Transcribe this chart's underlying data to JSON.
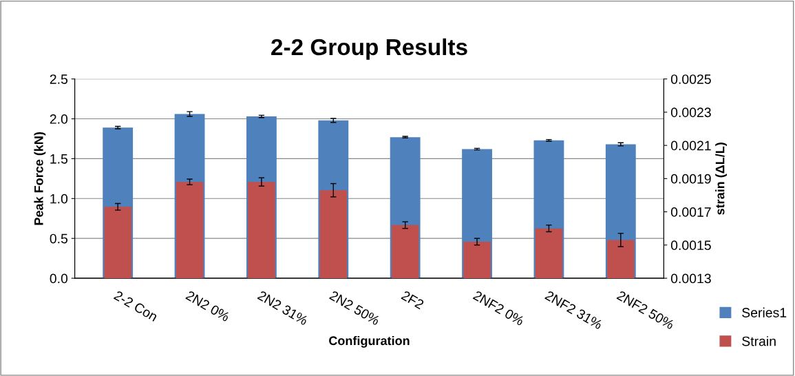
{
  "chart_data": {
    "type": "bar",
    "title": "2-2 Group Results",
    "xlabel": "Configuration",
    "ylabel": "Peak Force (kN)",
    "y2label": "strain (ΔL/L)",
    "categories": [
      "2-2 Con",
      "2N2 0%",
      "2N2 31%",
      "2N2 50%",
      "2F2",
      "2NF2 0%",
      "2NF2 31%",
      "2NF2 50%"
    ],
    "series": [
      {
        "name": "Series1",
        "color": "#4f81bd",
        "values": [
          1.89,
          2.06,
          2.03,
          1.98,
          1.77,
          1.62,
          1.73,
          1.68
        ],
        "errors": [
          0.015,
          0.03,
          0.015,
          0.025,
          0.01,
          0.01,
          0.01,
          0.02
        ]
      },
      {
        "name": "Strain",
        "color": "#c0504d",
        "axis": "y2",
        "values": [
          0.00173,
          0.00188,
          0.00188,
          0.00183,
          0.00162,
          0.00152,
          0.0016,
          0.00153
        ],
        "errors": [
          2e-05,
          1.7e-05,
          2.5e-05,
          4e-05,
          2e-05,
          2e-05,
          2e-05,
          4e-05
        ]
      }
    ],
    "ylim": [
      0,
      2.5
    ],
    "yticks": [
      {
        "value": 0,
        "label": "0.0"
      },
      {
        "value": 0.5,
        "label": "0.5"
      },
      {
        "value": 1,
        "label": "1.0"
      },
      {
        "value": 1.5,
        "label": "1.5"
      },
      {
        "value": 2,
        "label": "2.0"
      },
      {
        "value": 2.5,
        "label": "2.5"
      }
    ],
    "y2lim": [
      0.0013,
      0.0025
    ],
    "y2ticks": [
      0.0013,
      0.0015,
      0.0017,
      0.0019,
      0.0021,
      0.0023,
      0.0025
    ],
    "grid": "y",
    "legend": "right"
  }
}
